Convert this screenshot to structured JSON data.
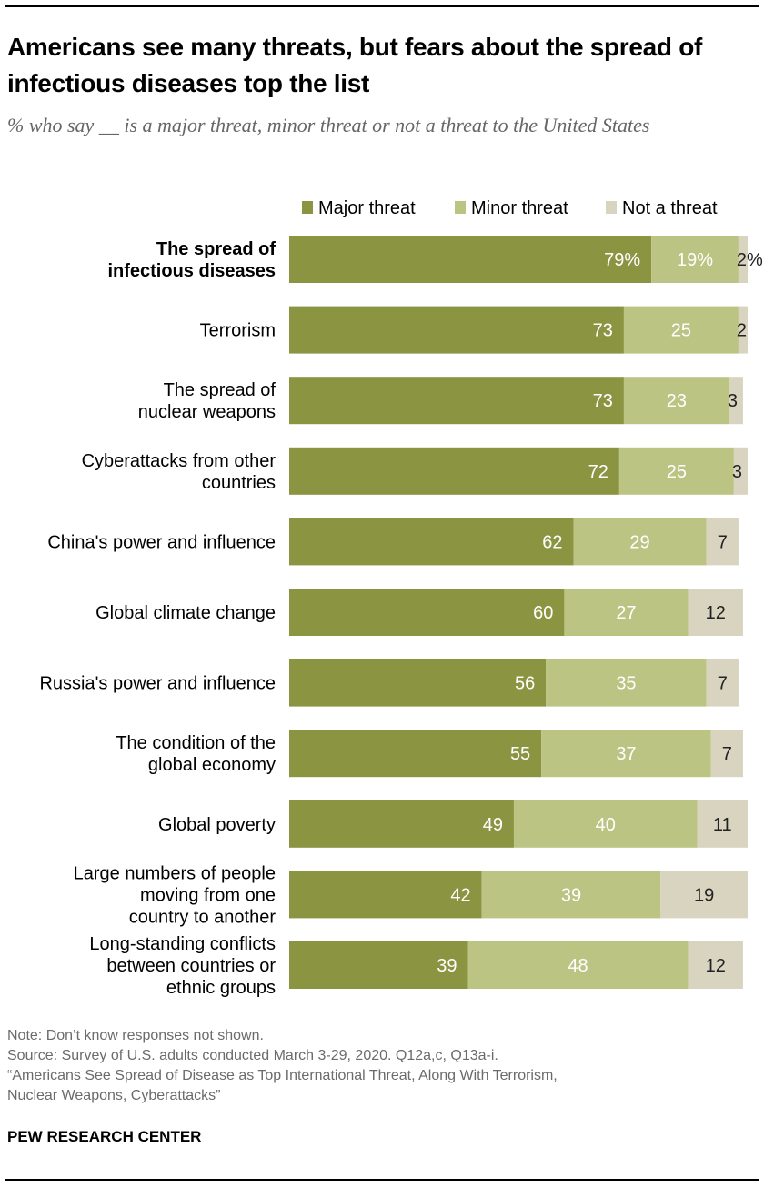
{
  "chart_data": {
    "type": "bar",
    "orientation": "horizontal",
    "stacked": true,
    "title": "Americans see many threats, but fears about the spread of infectious diseases top the list",
    "subtitle": "% who say __ is a major threat, minor threat or not a threat to the United States",
    "legend_position": "top-right",
    "categories": [
      [
        "The spread of",
        "infectious diseases"
      ],
      [
        "Terrorism"
      ],
      [
        "The spread of",
        "nuclear weapons"
      ],
      [
        "Cyberattacks from other",
        "countries"
      ],
      [
        "China's power and influence"
      ],
      [
        "Global climate change"
      ],
      [
        "Russia's power and influence"
      ],
      [
        "The condition of the",
        "global economy"
      ],
      [
        "Global poverty"
      ],
      [
        "Large numbers of people",
        "moving from one",
        "country to another"
      ],
      [
        "Long-standing conflicts",
        "between countries or",
        "ethnic groups"
      ]
    ],
    "highlighted_category_index": 0,
    "series": [
      {
        "name": "Major threat",
        "color": "#8a9441",
        "label_color": "#ffffff",
        "values": [
          79,
          73,
          73,
          72,
          62,
          60,
          56,
          55,
          49,
          42,
          39
        ]
      },
      {
        "name": "Minor threat",
        "color": "#bcc483",
        "label_color": "#ffffff",
        "values": [
          19,
          25,
          23,
          25,
          29,
          27,
          35,
          37,
          40,
          39,
          48
        ]
      },
      {
        "name": "Not a threat",
        "color": "#d9d4c0",
        "label_color": "#222222",
        "values": [
          2,
          2,
          3,
          3,
          7,
          12,
          7,
          7,
          11,
          19,
          12
        ]
      }
    ],
    "first_row_suffix": "%",
    "xlim": [
      0,
      100
    ],
    "grid": false
  },
  "notes": [
    "Note: Don’t know responses not shown.",
    "Source: Survey of U.S. adults conducted March 3-29, 2020. Q12a,c, Q13a-i.",
    "“Americans See Spread of Disease as Top International Threat, Along With Terrorism,",
    "Nuclear Weapons, Cyberattacks”"
  ],
  "brand": "PEW RESEARCH CENTER"
}
